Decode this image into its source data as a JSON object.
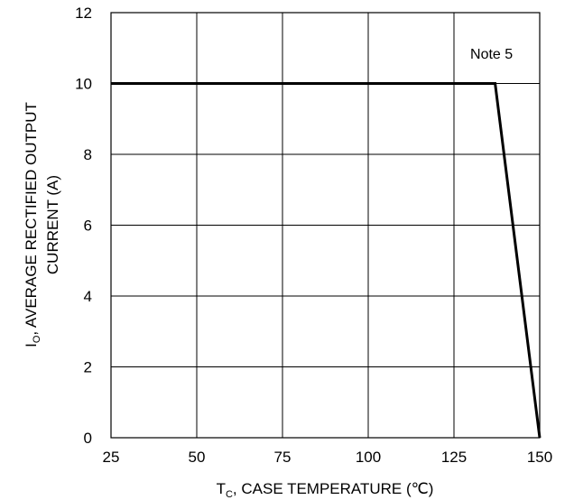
{
  "chart_data": {
    "type": "line",
    "xlabel": {
      "main": "T",
      "sub": "C",
      "rest": ", CASE TEMPERATURE (℃)"
    },
    "ylabel": {
      "line1_main": "I",
      "line1_sub": "O",
      "line1_rest": ", AVERAGE RECTIFIED OUTPUT",
      "line2": "CURRENT (A)"
    },
    "xlim": [
      25,
      150
    ],
    "ylim": [
      0,
      12
    ],
    "xticks": [
      25,
      50,
      75,
      100,
      125,
      150
    ],
    "yticks": [
      0,
      2,
      4,
      6,
      8,
      10,
      12
    ],
    "grid": true,
    "series": [
      {
        "x": [
          25,
          137,
          150
        ],
        "y": [
          10,
          10,
          0
        ]
      }
    ],
    "annotations": [
      {
        "text": "Note 5",
        "x": 137,
        "y": 10.7
      }
    ]
  }
}
